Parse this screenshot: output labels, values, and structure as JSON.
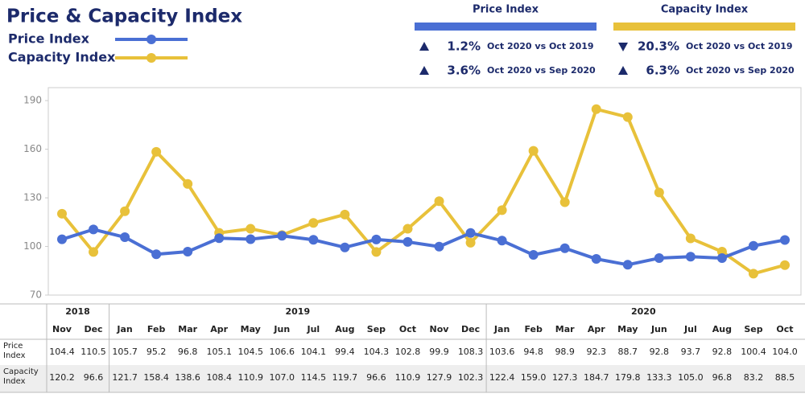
{
  "chart_data": {
    "type": "line",
    "title": "Price & Capacity Index",
    "category_groups": [
      {
        "label": "2018",
        "categories": [
          "Nov",
          "Dec"
        ]
      },
      {
        "label": "2019",
        "categories": [
          "Jan",
          "Feb",
          "Mar",
          "Apr",
          "May",
          "Jun",
          "Jul",
          "Aug",
          "Sep",
          "Oct",
          "Nov",
          "Dec"
        ]
      },
      {
        "label": "2020",
        "categories": [
          "Jan",
          "Feb",
          "Mar",
          "Apr",
          "May",
          "Jun",
          "Jul",
          "Aug",
          "Sep",
          "Oct"
        ]
      }
    ],
    "series": [
      {
        "name": "Price Index",
        "color": "#4a6fd4",
        "values": [
          104.4,
          110.5,
          105.7,
          95.2,
          96.8,
          105.1,
          104.5,
          106.6,
          104.1,
          99.4,
          104.3,
          102.8,
          99.9,
          108.3,
          103.6,
          94.8,
          98.9,
          92.3,
          88.7,
          92.8,
          93.7,
          92.8,
          100.4,
          104.0
        ],
        "value_labels": [
          "104.4",
          "110.5",
          "105.7",
          "95.2",
          "96.8",
          "105.1",
          "104.5",
          "106.6",
          "104.1",
          "99.4",
          "104.3",
          "102.8",
          "99.9",
          "108.3",
          "103.6",
          "94.8",
          "98.9",
          "92.3",
          "88.7",
          "92.8",
          "93.7",
          "92.8",
          "100.4",
          "104.0"
        ]
      },
      {
        "name": "Capacity Index",
        "color": "#e8c13a",
        "values": [
          120.2,
          96.6,
          121.7,
          158.4,
          138.6,
          108.4,
          110.9,
          107.0,
          114.5,
          119.7,
          96.6,
          110.9,
          127.9,
          102.3,
          122.4,
          159.0,
          127.3,
          184.7,
          179.8,
          133.3,
          105.0,
          96.8,
          83.2,
          88.5
        ],
        "value_labels": [
          "120.2",
          "96.6",
          "121.7",
          "158.4",
          "138.6",
          "108.4",
          "110.9",
          "107.0",
          "114.5",
          "119.7",
          "96.6",
          "110.9",
          "127.9",
          "102.3",
          "122.4",
          "159.0",
          "127.3",
          "184.7",
          "179.8",
          "133.3",
          "105.0",
          "96.8",
          "83.2",
          "88.5"
        ]
      }
    ],
    "ylim": [
      70,
      198
    ],
    "yticks": [
      70,
      100,
      130,
      160,
      190
    ],
    "grid": false,
    "kpis": [
      {
        "items": [
          {
            "direction": "up",
            "value": "1.2%",
            "label": "Oct 2020 vs Oct 2019"
          },
          {
            "direction": "up",
            "value": "3.6%",
            "label": "Oct 2020 vs Sep 2020"
          }
        ]
      },
      {
        "items": [
          {
            "direction": "down",
            "value": "20.3%",
            "label": "Oct 2020 vs Oct 2019"
          },
          {
            "direction": "up",
            "value": "6.3%",
            "label": "Oct 2020 vs Sep 2020"
          }
        ]
      }
    ]
  }
}
